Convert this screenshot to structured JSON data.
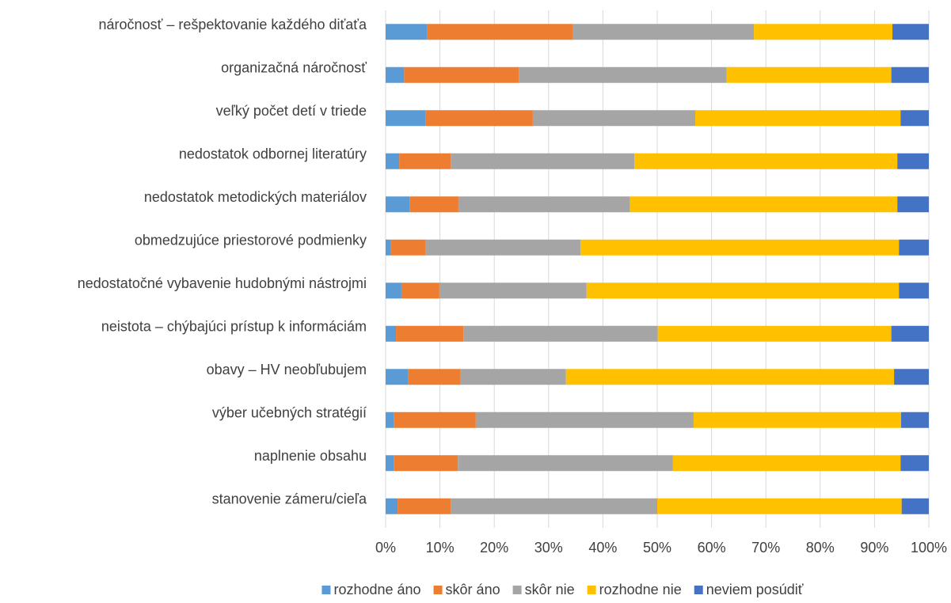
{
  "chart_data": {
    "type": "stacked_barh",
    "categories": [
      "náročnosť – rešpektovanie každého diťaťa",
      "organizačná náročnosť",
      "veľký počet detí v triede",
      "nedostatok odbornej literatúry",
      "nedostatok metodických materiálov",
      "obmedzujúce priestorové podmienky",
      "nedostatočné vybavenie hudobnými nástrojmi",
      "neistota – chýbajúci prístup k informáciám",
      "obavy – HV neobľubujem",
      "výber učebných stratégií",
      "naplnenie obsahu",
      "stanovenie zámeru/cieľa"
    ],
    "series": [
      {
        "name": "rozhodne áno",
        "color": "#5b9bd5",
        "values": [
          7.7,
          3.4,
          7.3,
          2.5,
          4.4,
          1.0,
          2.9,
          1.9,
          4.2,
          1.5,
          1.5,
          2.2
        ]
      },
      {
        "name": "skôr áno",
        "color": "#ed7d31",
        "values": [
          26.7,
          21.1,
          19.8,
          9.5,
          9.0,
          6.4,
          7.0,
          12.4,
          9.6,
          15.1,
          11.8,
          9.8
        ]
      },
      {
        "name": "skôr nie",
        "color": "#a5a5a5",
        "values": [
          33.4,
          38.3,
          29.9,
          33.8,
          31.6,
          28.5,
          27.1,
          35.8,
          19.4,
          40.1,
          39.6,
          38.0
        ]
      },
      {
        "name": "rozhodne nie",
        "color": "#ffc000",
        "values": [
          25.5,
          30.3,
          37.8,
          48.4,
          49.2,
          58.6,
          57.5,
          43.0,
          60.4,
          38.2,
          41.9,
          45.0
        ]
      },
      {
        "name": "neviem posúdiť",
        "color": "#4472c4",
        "values": [
          6.7,
          6.9,
          5.2,
          5.8,
          5.8,
          5.5,
          5.5,
          6.9,
          6.4,
          5.1,
          5.2,
          5.0
        ]
      }
    ],
    "xlim": [
      0,
      100
    ],
    "xticks": [
      {
        "value": 0,
        "label": "0%"
      },
      {
        "value": 10,
        "label": "10%"
      },
      {
        "value": 20,
        "label": "20%"
      },
      {
        "value": 30,
        "label": "30%"
      },
      {
        "value": 40,
        "label": "40%"
      },
      {
        "value": 50,
        "label": "50%"
      },
      {
        "value": 60,
        "label": "60%"
      },
      {
        "value": 70,
        "label": "70%"
      },
      {
        "value": 80,
        "label": "80%"
      },
      {
        "value": 90,
        "label": "90%"
      },
      {
        "value": 100,
        "label": "100%"
      }
    ],
    "grid": true,
    "legend": "bottom"
  }
}
